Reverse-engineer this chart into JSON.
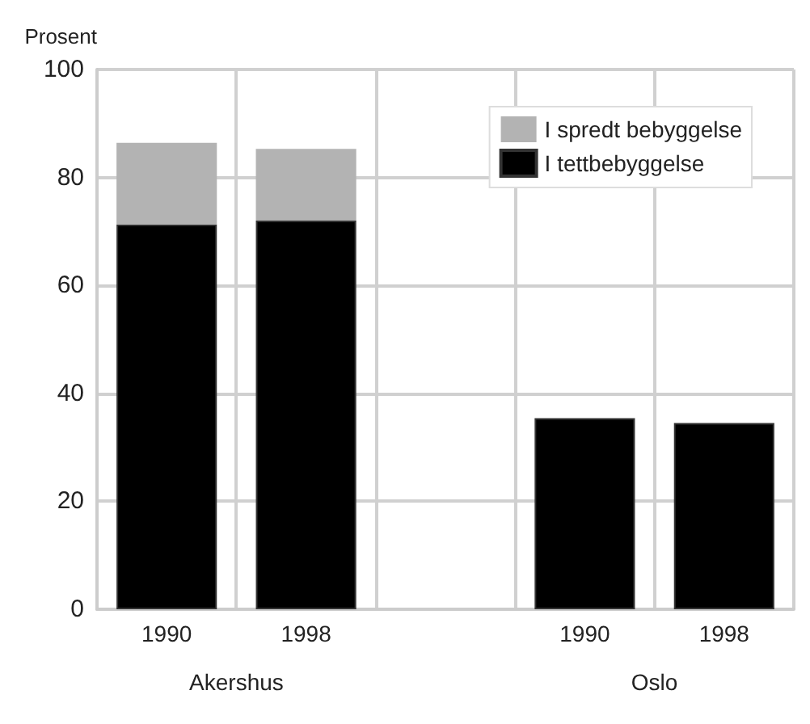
{
  "chart_data": {
    "type": "bar",
    "stacked": true,
    "ylabel": "Prosent",
    "categories": [
      "1990",
      "1998",
      null,
      "1990",
      "1998"
    ],
    "series": [
      {
        "name": "I tettbebyggelse",
        "color": "#000000",
        "values": [
          71.3,
          72.0,
          null,
          35.4,
          34.5
        ]
      },
      {
        "name": "I spredt bebyggelse",
        "color": "#b3b3b3",
        "values": [
          15.1,
          13.3,
          null,
          null,
          null
        ]
      }
    ],
    "ylim": [
      0,
      100
    ],
    "yticks": [
      0,
      20,
      40,
      60,
      80,
      100
    ],
    "grid": true,
    "legend": "top right",
    "annotations": [
      "Akershus",
      "Oslo"
    ]
  }
}
